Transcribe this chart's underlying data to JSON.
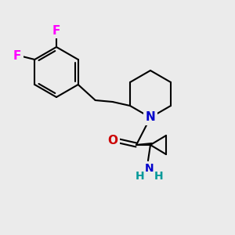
{
  "background_color": "#ebebeb",
  "bond_color": "#000000",
  "atom_colors": {
    "F": "#ff00ff",
    "N": "#0000cc",
    "O": "#cc0000",
    "NH_H": "#009999"
  },
  "figsize": [
    3.0,
    3.0
  ],
  "dpi": 100,
  "lw": 1.5
}
